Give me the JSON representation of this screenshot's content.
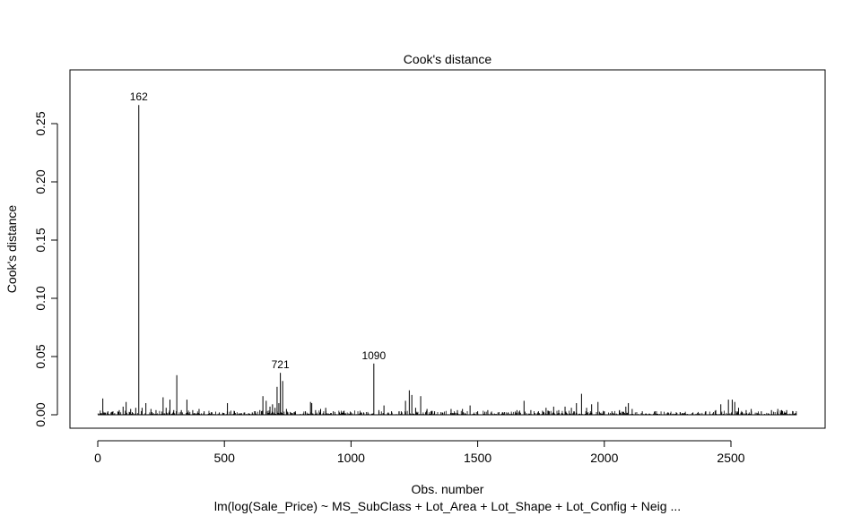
{
  "chart_data": {
    "type": "bar",
    "title": "Cook's distance",
    "xlabel": "Obs. number",
    "ylabel": "Cook's distance",
    "subtitle": "lm(log(Sale_Price) ~ MS_SubClass + Lot_Area + Lot_Shape + Lot_Config + Neig ...",
    "xlim": [
      0,
      2760
    ],
    "ylim": [
      0,
      0.27
    ],
    "x_ticks": [
      0,
      500,
      1000,
      1500,
      2000,
      2500
    ],
    "y_ticks": [
      0.0,
      0.05,
      0.1,
      0.15,
      0.2,
      0.25
    ],
    "y_tick_labels": [
      "0.00",
      "0.05",
      "0.10",
      "0.15",
      "0.20",
      "0.25"
    ],
    "n_obs": 2760,
    "labeled_points": [
      {
        "label": "162",
        "x": 162,
        "y": 0.266
      },
      {
        "label": "721",
        "x": 721,
        "y": 0.036
      },
      {
        "label": "1090",
        "x": 1090,
        "y": 0.044
      }
    ],
    "spikes": [
      {
        "x": 20,
        "y": 0.014
      },
      {
        "x": 40,
        "y": 0.003
      },
      {
        "x": 60,
        "y": 0.003
      },
      {
        "x": 85,
        "y": 0.004
      },
      {
        "x": 100,
        "y": 0.007
      },
      {
        "x": 112,
        "y": 0.011
      },
      {
        "x": 130,
        "y": 0.005
      },
      {
        "x": 150,
        "y": 0.006
      },
      {
        "x": 162,
        "y": 0.266
      },
      {
        "x": 175,
        "y": 0.006
      },
      {
        "x": 190,
        "y": 0.01
      },
      {
        "x": 210,
        "y": 0.005
      },
      {
        "x": 230,
        "y": 0.004
      },
      {
        "x": 258,
        "y": 0.015
      },
      {
        "x": 270,
        "y": 0.006
      },
      {
        "x": 285,
        "y": 0.013
      },
      {
        "x": 300,
        "y": 0.004
      },
      {
        "x": 312,
        "y": 0.034
      },
      {
        "x": 330,
        "y": 0.004
      },
      {
        "x": 352,
        "y": 0.013
      },
      {
        "x": 375,
        "y": 0.004
      },
      {
        "x": 400,
        "y": 0.005
      },
      {
        "x": 420,
        "y": 0.003
      },
      {
        "x": 450,
        "y": 0.002
      },
      {
        "x": 480,
        "y": 0.002
      },
      {
        "x": 512,
        "y": 0.01
      },
      {
        "x": 540,
        "y": 0.003
      },
      {
        "x": 580,
        "y": 0.002
      },
      {
        "x": 610,
        "y": 0.002
      },
      {
        "x": 640,
        "y": 0.004
      },
      {
        "x": 652,
        "y": 0.016
      },
      {
        "x": 665,
        "y": 0.012
      },
      {
        "x": 680,
        "y": 0.007
      },
      {
        "x": 690,
        "y": 0.009
      },
      {
        "x": 700,
        "y": 0.006
      },
      {
        "x": 708,
        "y": 0.024
      },
      {
        "x": 715,
        "y": 0.01
      },
      {
        "x": 721,
        "y": 0.036
      },
      {
        "x": 730,
        "y": 0.029
      },
      {
        "x": 745,
        "y": 0.005
      },
      {
        "x": 780,
        "y": 0.003
      },
      {
        "x": 820,
        "y": 0.003
      },
      {
        "x": 840,
        "y": 0.011
      },
      {
        "x": 845,
        "y": 0.01
      },
      {
        "x": 860,
        "y": 0.004
      },
      {
        "x": 880,
        "y": 0.005
      },
      {
        "x": 900,
        "y": 0.006
      },
      {
        "x": 930,
        "y": 0.003
      },
      {
        "x": 970,
        "y": 0.003
      },
      {
        "x": 1000,
        "y": 0.002
      },
      {
        "x": 1050,
        "y": 0.002
      },
      {
        "x": 1090,
        "y": 0.044
      },
      {
        "x": 1110,
        "y": 0.004
      },
      {
        "x": 1130,
        "y": 0.008
      },
      {
        "x": 1160,
        "y": 0.003
      },
      {
        "x": 1190,
        "y": 0.003
      },
      {
        "x": 1215,
        "y": 0.012
      },
      {
        "x": 1230,
        "y": 0.021
      },
      {
        "x": 1240,
        "y": 0.017
      },
      {
        "x": 1255,
        "y": 0.006
      },
      {
        "x": 1275,
        "y": 0.016
      },
      {
        "x": 1300,
        "y": 0.005
      },
      {
        "x": 1330,
        "y": 0.003
      },
      {
        "x": 1360,
        "y": 0.002
      },
      {
        "x": 1395,
        "y": 0.005
      },
      {
        "x": 1420,
        "y": 0.004
      },
      {
        "x": 1440,
        "y": 0.005
      },
      {
        "x": 1470,
        "y": 0.008
      },
      {
        "x": 1500,
        "y": 0.003
      },
      {
        "x": 1540,
        "y": 0.004
      },
      {
        "x": 1580,
        "y": 0.002
      },
      {
        "x": 1620,
        "y": 0.002
      },
      {
        "x": 1655,
        "y": 0.004
      },
      {
        "x": 1683,
        "y": 0.012
      },
      {
        "x": 1710,
        "y": 0.004
      },
      {
        "x": 1740,
        "y": 0.003
      },
      {
        "x": 1770,
        "y": 0.006
      },
      {
        "x": 1800,
        "y": 0.007
      },
      {
        "x": 1820,
        "y": 0.004
      },
      {
        "x": 1845,
        "y": 0.007
      },
      {
        "x": 1870,
        "y": 0.006
      },
      {
        "x": 1890,
        "y": 0.01
      },
      {
        "x": 1910,
        "y": 0.018
      },
      {
        "x": 1930,
        "y": 0.006
      },
      {
        "x": 1950,
        "y": 0.009
      },
      {
        "x": 1975,
        "y": 0.011
      },
      {
        "x": 2000,
        "y": 0.003
      },
      {
        "x": 2030,
        "y": 0.003
      },
      {
        "x": 2060,
        "y": 0.004
      },
      {
        "x": 2085,
        "y": 0.007
      },
      {
        "x": 2095,
        "y": 0.01
      },
      {
        "x": 2110,
        "y": 0.005
      },
      {
        "x": 2150,
        "y": 0.003
      },
      {
        "x": 2200,
        "y": 0.003
      },
      {
        "x": 2250,
        "y": 0.002
      },
      {
        "x": 2300,
        "y": 0.002
      },
      {
        "x": 2350,
        "y": 0.002
      },
      {
        "x": 2400,
        "y": 0.003
      },
      {
        "x": 2440,
        "y": 0.004
      },
      {
        "x": 2460,
        "y": 0.009
      },
      {
        "x": 2490,
        "y": 0.013
      },
      {
        "x": 2505,
        "y": 0.013
      },
      {
        "x": 2515,
        "y": 0.011
      },
      {
        "x": 2530,
        "y": 0.006
      },
      {
        "x": 2560,
        "y": 0.004
      },
      {
        "x": 2580,
        "y": 0.005
      },
      {
        "x": 2620,
        "y": 0.003
      },
      {
        "x": 2660,
        "y": 0.004
      },
      {
        "x": 2685,
        "y": 0.005
      },
      {
        "x": 2700,
        "y": 0.004
      },
      {
        "x": 2720,
        "y": 0.004
      },
      {
        "x": 2745,
        "y": 0.003
      }
    ]
  }
}
